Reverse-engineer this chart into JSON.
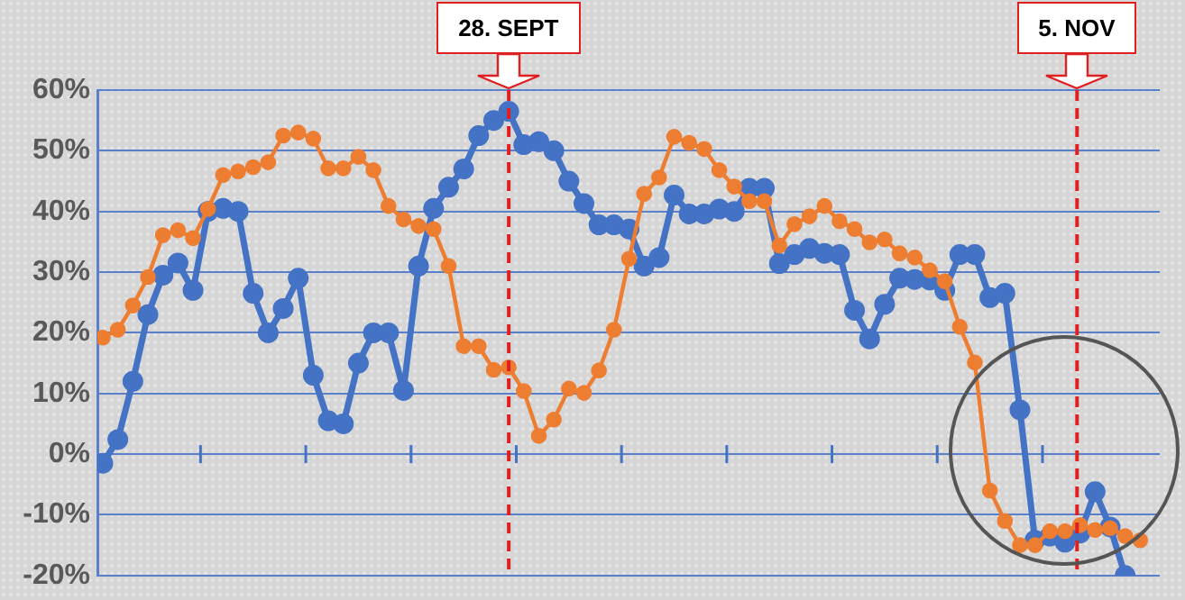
{
  "chart_data": {
    "type": "line",
    "categories": [
      null,
      null,
      null,
      null,
      null,
      null,
      null,
      null,
      null,
      null,
      null,
      null,
      null,
      null,
      null,
      null,
      null,
      null,
      null,
      null,
      null,
      null,
      null,
      null,
      null,
      null,
      null,
      null,
      null,
      null,
      null,
      null,
      null,
      null,
      null,
      null,
      null,
      null,
      null,
      null,
      null,
      null,
      null,
      null,
      null,
      null,
      null,
      null,
      null,
      null,
      null,
      null,
      null,
      null,
      null,
      null,
      null,
      null,
      null,
      null,
      null,
      null,
      null,
      null,
      null,
      null,
      null,
      null,
      null,
      null
    ],
    "series": [
      {
        "color": "#4472c4",
        "values": [
          -1.5,
          2.4,
          12,
          23,
          29.5,
          31.5,
          27,
          40,
          40.5,
          40,
          26.5,
          20,
          24,
          29,
          13,
          5.5,
          5,
          15,
          20,
          20,
          10.5,
          31,
          40.5,
          44,
          47,
          52.5,
          55,
          56.5,
          51,
          51.5,
          50,
          45,
          41.3,
          37.8,
          37.8,
          37.1,
          31,
          32.4,
          42.7,
          39.6,
          39.6,
          40.4,
          40,
          43.8,
          43.8,
          31.4,
          32.9,
          33.9,
          33.1,
          32.9,
          23.7,
          19,
          24.7,
          29,
          28.8,
          28.7,
          27,
          32.9,
          32.9,
          25.8,
          26.5,
          7.3,
          -14.2,
          -13.5,
          -14.5,
          -13,
          -6.2,
          -12,
          -20,
          null
        ]
      },
      {
        "color": "#ed7d31",
        "values": [
          19.2,
          20.5,
          24.5,
          29.2,
          36.1,
          36.9,
          35.6,
          40.4,
          46,
          46.6,
          47.3,
          48.1,
          52.5,
          53,
          52,
          47.1,
          47.1,
          49,
          46.8,
          40.9,
          38.7,
          37.6,
          37.1,
          31,
          17.8,
          17.8,
          13.9,
          14.3,
          10.4,
          3,
          5.7,
          10.8,
          10.1,
          13.8,
          20.5,
          32.2,
          42.9,
          45.6,
          52.3,
          51.3,
          50.3,
          46.8,
          44.1,
          41.7,
          41.7,
          34.4,
          37.9,
          39.2,
          40.9,
          38.4,
          37.1,
          34.9,
          35.4,
          33.1,
          32.4,
          30.3,
          28.5,
          21,
          15.1,
          -6,
          -11,
          -15,
          -15,
          -12.7,
          -12.7,
          -11.7,
          -12.5,
          -12.2,
          -13.5,
          -14.2
        ]
      }
    ],
    "ylim": [
      -20,
      60
    ],
    "yticks": [
      {
        "value": -20,
        "label": "-20%"
      },
      {
        "value": -10,
        "label": "-10%"
      },
      {
        "value": 0,
        "label": "0%"
      },
      {
        "value": 10,
        "label": "10%"
      },
      {
        "value": 20,
        "label": "20%"
      },
      {
        "value": 30,
        "label": "30%"
      },
      {
        "value": 40,
        "label": "40%"
      },
      {
        "value": 50,
        "label": "50%"
      },
      {
        "value": 60,
        "label": "60%"
      }
    ],
    "tick_labels": "y",
    "grid": "y",
    "legend": false,
    "marker": "circle",
    "line_style": "solid",
    "annotations": [
      "28. SEPT",
      "5. NOV"
    ]
  }
}
